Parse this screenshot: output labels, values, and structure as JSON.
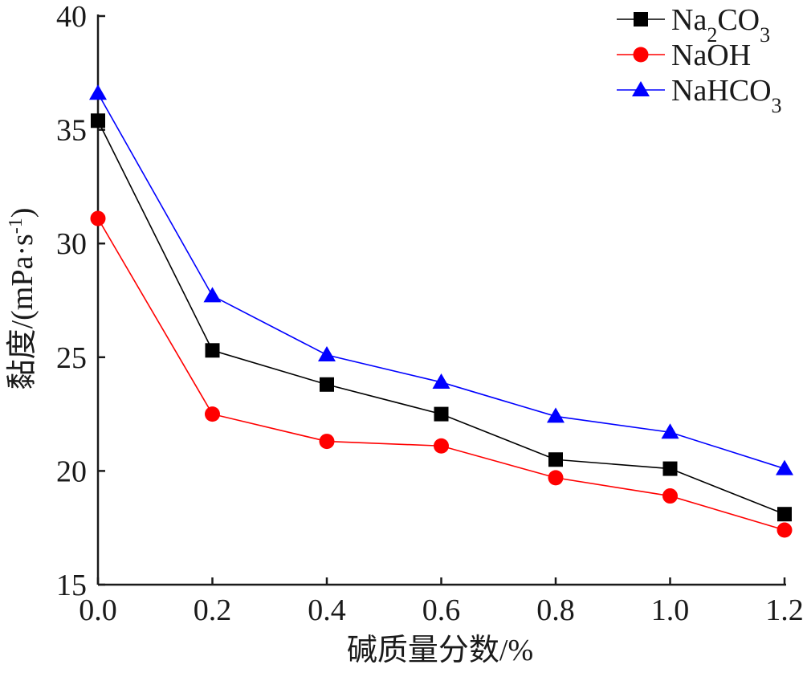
{
  "chart_data": {
    "type": "line",
    "xlabel": "碱质量分数/%",
    "ylabel": "黏度/(mPa·s-1)",
    "ylabel_parts": {
      "base": "黏度/(mPa·s",
      "sup": "-1",
      "close": ")"
    },
    "x": [
      0.0,
      0.2,
      0.4,
      0.6,
      0.8,
      1.0,
      1.2
    ],
    "x_tick_labels": [
      "0.0",
      "0.2",
      "0.4",
      "0.6",
      "0.8",
      "1.0",
      "1.2"
    ],
    "y_ticks": [
      15,
      20,
      25,
      30,
      35,
      40
    ],
    "y_tick_labels": [
      "15",
      "20",
      "25",
      "30",
      "35",
      "40"
    ],
    "xlim": [
      0.0,
      1.2
    ],
    "ylim": [
      15,
      40
    ],
    "grid": false,
    "legend_position": "top-right",
    "series": [
      {
        "name": "Na2CO3",
        "label_parts": [
          {
            "t": "Na"
          },
          {
            "t": "2",
            "sub": true
          },
          {
            "t": "CO"
          },
          {
            "t": "3",
            "sub": true
          }
        ],
        "marker": "square",
        "color": "#000000",
        "values": [
          35.4,
          25.3,
          23.8,
          22.5,
          20.5,
          20.1,
          18.1
        ]
      },
      {
        "name": "NaOH",
        "label_parts": [
          {
            "t": "NaOH"
          }
        ],
        "marker": "circle",
        "color": "#ff0000",
        "values": [
          31.1,
          22.5,
          21.3,
          21.1,
          19.7,
          18.9,
          17.4
        ]
      },
      {
        "name": "NaHCO3",
        "label_parts": [
          {
            "t": "NaHCO"
          },
          {
            "t": "3",
            "sub": true
          }
        ],
        "marker": "triangle",
        "color": "#0000ff",
        "values": [
          36.6,
          27.7,
          25.1,
          23.9,
          22.4,
          21.7,
          20.1
        ]
      }
    ]
  }
}
